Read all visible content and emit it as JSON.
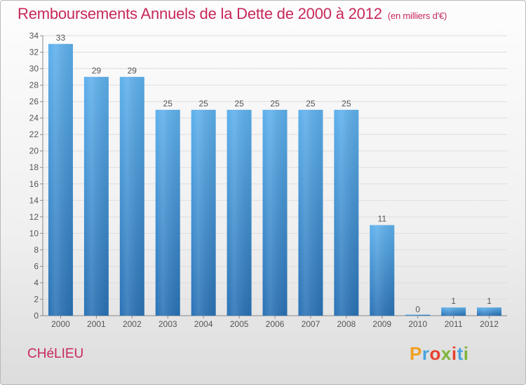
{
  "title": "Remboursements Annuels de la Dette de 2000 à 2012",
  "subtitle": "(en milliers d'€)",
  "commune": "CHéLIEU",
  "brand": {
    "letters": [
      "P",
      "r",
      "o",
      "x",
      "i",
      "t",
      "i"
    ],
    "colors": [
      "#f0a020",
      "#4aa3df",
      "#e8412e",
      "#7fb539",
      "#e8412e",
      "#4aa3df",
      "#7fb539"
    ]
  },
  "colors": {
    "title": "#c8285a",
    "bar_top": "#5eb0ec",
    "bar_bottom": "#2a72b5",
    "label": "#555555",
    "grid": "#dddddd"
  },
  "chart_data": {
    "type": "bar",
    "categories": [
      "2000",
      "2001",
      "2002",
      "2003",
      "2004",
      "2005",
      "2006",
      "2007",
      "2008",
      "2009",
      "2010",
      "2011",
      "2012"
    ],
    "values": [
      33,
      29,
      29,
      25,
      25,
      25,
      25,
      25,
      25,
      11,
      0,
      1,
      1
    ],
    "value_labels": [
      "33",
      "29",
      "29",
      "25",
      "25",
      "25",
      "25",
      "25",
      "25",
      "11",
      "0",
      "1",
      "1"
    ],
    "y_ticks": [
      0,
      2,
      4,
      6,
      8,
      10,
      12,
      14,
      16,
      18,
      20,
      22,
      24,
      26,
      28,
      30,
      32,
      34
    ],
    "ylim": [
      0,
      34
    ],
    "grid": true,
    "xlabel": "",
    "ylabel": ""
  }
}
